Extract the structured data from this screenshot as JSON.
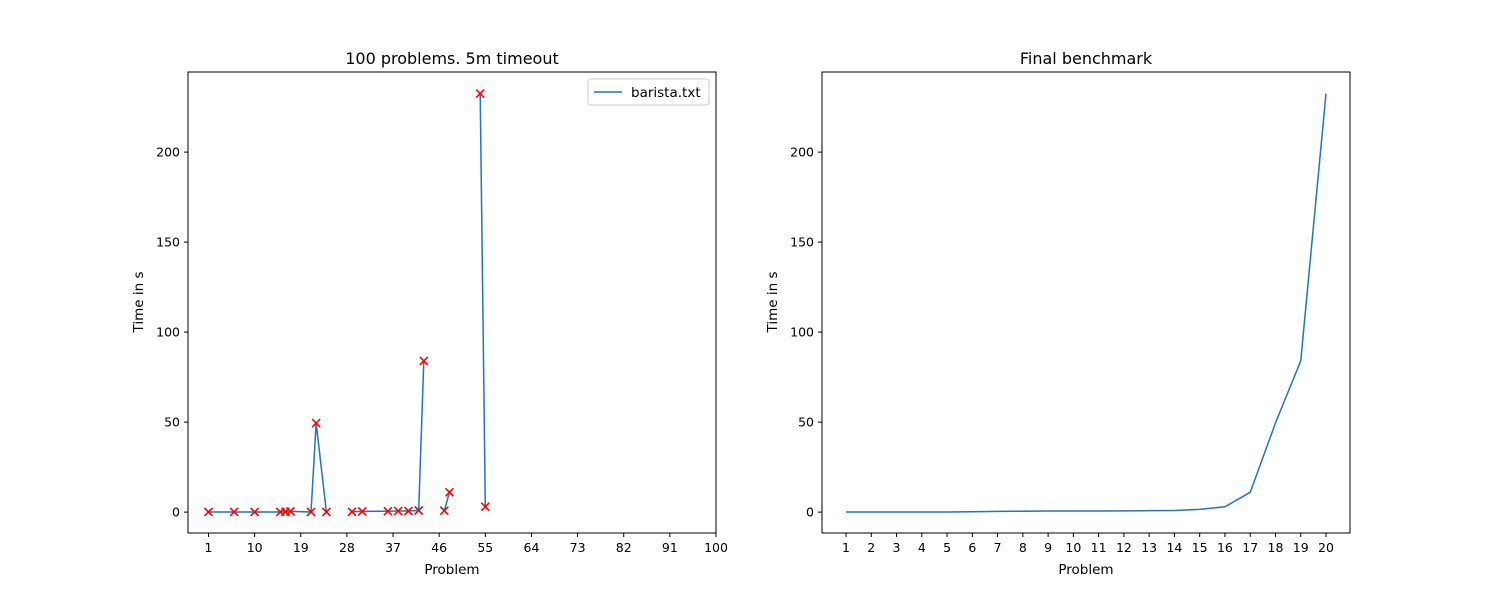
{
  "chart_data": [
    {
      "type": "line",
      "title": "100 problems. 5m timeout",
      "xlabel": "Problem",
      "ylabel": "Time in s",
      "xlim": [
        -3,
        100
      ],
      "ylim": [
        -11.6,
        244.5
      ],
      "xticks": [
        1,
        10,
        19,
        28,
        37,
        46,
        55,
        64,
        73,
        82,
        91,
        100
      ],
      "yticks": [
        0,
        50,
        100,
        150,
        200
      ],
      "grid": false,
      "legend_position": "top-right",
      "series": [
        {
          "name": "barista.txt",
          "color": "#1f77b4",
          "style": "line",
          "segments": [
            [
              [
                1,
                0.1
              ],
              [
                6,
                0.1
              ],
              [
                10,
                0.1
              ],
              [
                15,
                0.1
              ],
              [
                16,
                0.2
              ],
              [
                17,
                0.4
              ],
              [
                21,
                0.1
              ],
              [
                22,
                49.5
              ],
              [
                24,
                0.1
              ]
            ],
            [
              [
                29,
                0.2
              ],
              [
                31,
                0.4
              ],
              [
                36,
                0.5
              ],
              [
                38,
                0.6
              ],
              [
                40,
                0.6
              ],
              [
                42,
                0.9
              ],
              [
                43,
                84.0
              ]
            ],
            [
              [
                47,
                0.8
              ],
              [
                48,
                11.0
              ]
            ],
            [
              [
                54,
                232.5
              ],
              [
                55,
                3.0
              ]
            ]
          ]
        },
        {
          "name": "",
          "color": "#ff0000",
          "style": "markers",
          "marker": "x",
          "points": [
            [
              1,
              0.1
            ],
            [
              6,
              0.1
            ],
            [
              10,
              0.1
            ],
            [
              15,
              0.1
            ],
            [
              16,
              0.2
            ],
            [
              17,
              0.4
            ],
            [
              21,
              0.1
            ],
            [
              22,
              49.5
            ],
            [
              24,
              0.1
            ],
            [
              29,
              0.2
            ],
            [
              31,
              0.4
            ],
            [
              36,
              0.5
            ],
            [
              38,
              0.6
            ],
            [
              40,
              0.6
            ],
            [
              42,
              0.9
            ],
            [
              43,
              84.0
            ],
            [
              47,
              0.8
            ],
            [
              48,
              11.0
            ],
            [
              54,
              232.5
            ],
            [
              55,
              3.0
            ]
          ]
        }
      ]
    },
    {
      "type": "line",
      "title": "Final benchmark",
      "xlabel": "Problem",
      "ylabel": "Time in s",
      "xlim": [
        0.05,
        20.95
      ],
      "ylim": [
        -11.6,
        244.5
      ],
      "xticks": [
        1,
        2,
        3,
        4,
        5,
        6,
        7,
        8,
        9,
        10,
        11,
        12,
        13,
        14,
        15,
        16,
        17,
        18,
        19,
        20
      ],
      "yticks": [
        0,
        50,
        100,
        150,
        200
      ],
      "grid": false,
      "series": [
        {
          "name": "",
          "color": "#1f77b4",
          "style": "line",
          "x": [
            1,
            2,
            3,
            4,
            5,
            6,
            7,
            8,
            9,
            10,
            11,
            12,
            13,
            14,
            15,
            16,
            17,
            18,
            19,
            20
          ],
          "values": [
            0.1,
            0.1,
            0.1,
            0.1,
            0.1,
            0.2,
            0.4,
            0.5,
            0.6,
            0.6,
            0.6,
            0.7,
            0.8,
            0.9,
            1.5,
            3.0,
            11.0,
            49.5,
            84.0,
            232.5
          ]
        }
      ]
    }
  ]
}
